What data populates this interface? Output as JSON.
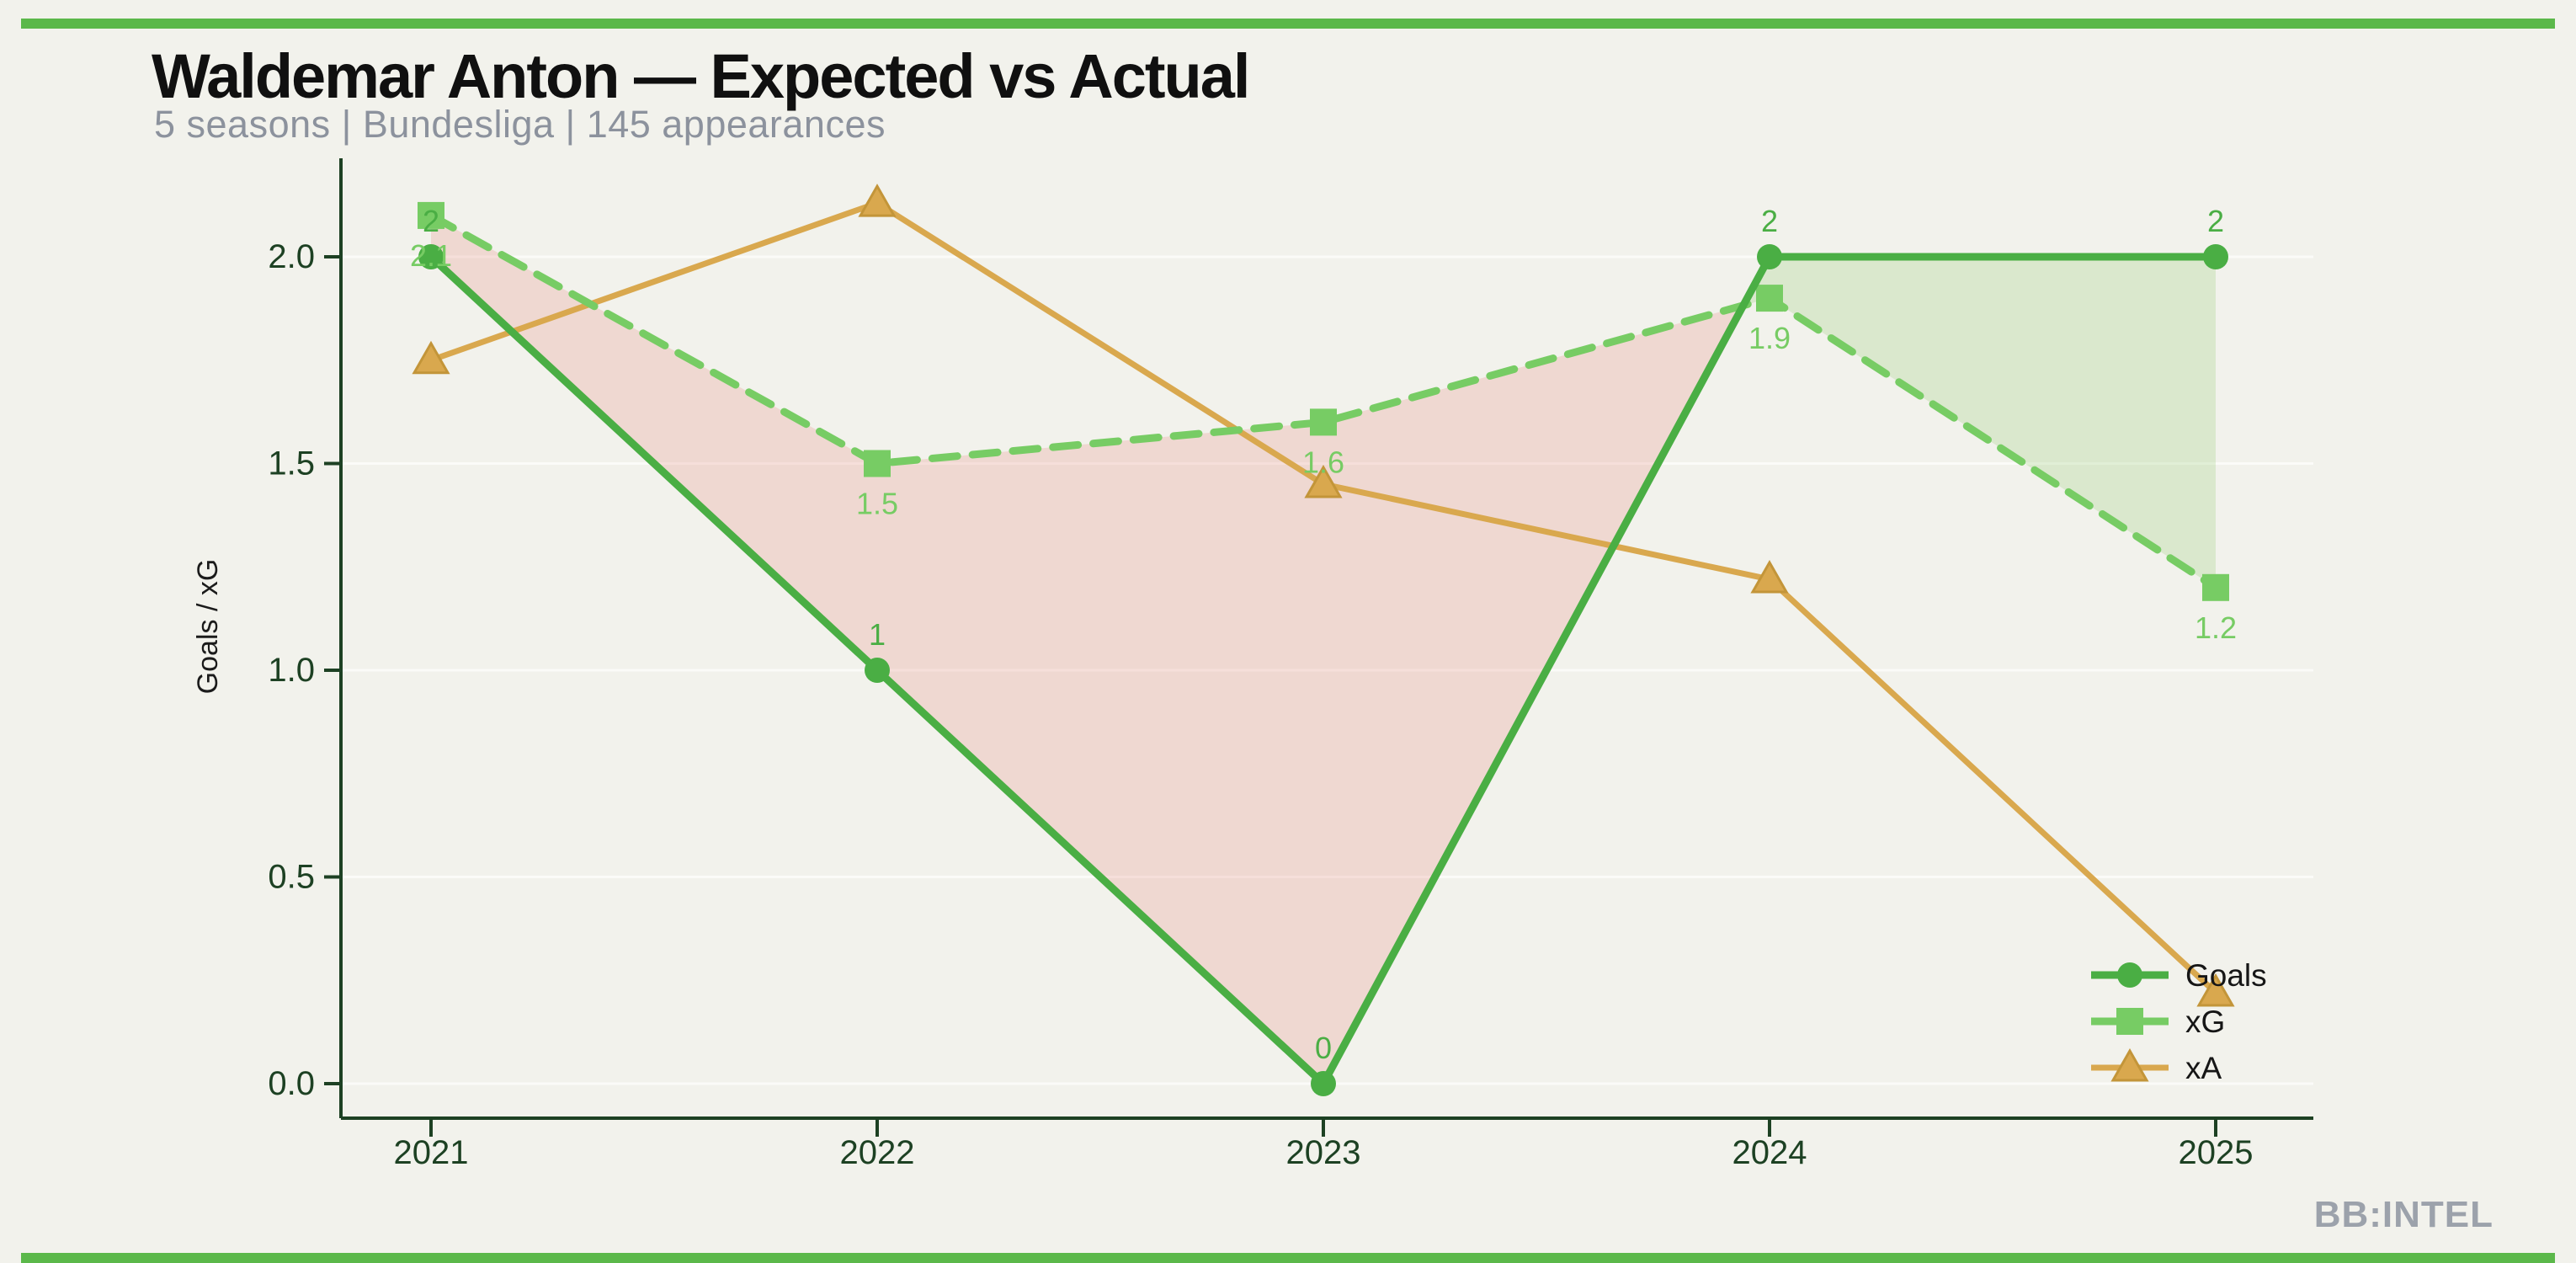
{
  "header": {
    "title": "Waldemar Anton — Expected vs Actual",
    "subtitle": "5 seasons | Bundesliga | 145 appearances"
  },
  "footer": {
    "watermark": "BB:INTEL"
  },
  "colors": {
    "background": "#F2F2EC",
    "accent_bar": "#5BB84A",
    "axis": "#1D4123",
    "subtitle_gray": "#8C929D",
    "watermark_gray": "#9CA2AB",
    "goals_green": "#4AAE44",
    "xg_light_green": "#77CC64",
    "xa_gold": "#D9A84E",
    "fill_xg_over_goals_pink": "rgba(235,150,140,0.28)",
    "fill_goals_over_xg_green": "rgba(130,197,94,0.22)"
  },
  "chart_data": {
    "type": "line",
    "title": "Waldemar Anton — Expected vs Actual",
    "subtitle": "5 seasons | Bundesliga | 145 appearances",
    "xlabel": "",
    "ylabel": "Goals / xG",
    "categories": [
      "2021",
      "2022",
      "2023",
      "2024",
      "2025"
    ],
    "y_ticks": [
      "0.0",
      "0.5",
      "1.0",
      "1.5",
      "2.0"
    ],
    "ylim": [
      0,
      2.25
    ],
    "grid": "faint horizontal gridlines at y ticks",
    "legend_position": "lower right",
    "series": [
      {
        "name": "Goals",
        "marker": "circle",
        "style": "solid",
        "color": "#4AAE44",
        "values": [
          2,
          1,
          0,
          2,
          2
        ],
        "labels": [
          "2",
          "1",
          "0",
          "2",
          "2"
        ]
      },
      {
        "name": "xG",
        "marker": "square",
        "style": "dashed",
        "color": "#77CC64",
        "values": [
          2.1,
          1.5,
          1.6,
          1.9,
          1.2
        ],
        "labels": [
          "2.1",
          "1.5",
          "1.6",
          "1.9",
          "1.2"
        ]
      },
      {
        "name": "xA",
        "marker": "triangle",
        "style": "solid",
        "color": "#D9A84E",
        "values": [
          1.75,
          2.13,
          1.45,
          1.22,
          0.22
        ],
        "labels": []
      }
    ],
    "fills": [
      {
        "name": "xg-over-goals",
        "between": [
          "xG",
          "Goals"
        ],
        "where": "xG > Goals",
        "color": "rgba(235,150,140,0.28)"
      },
      {
        "name": "goals-over-xg",
        "between": [
          "Goals",
          "xG"
        ],
        "where": "Goals > xG",
        "color": "rgba(130,197,94,0.22)"
      }
    ]
  }
}
